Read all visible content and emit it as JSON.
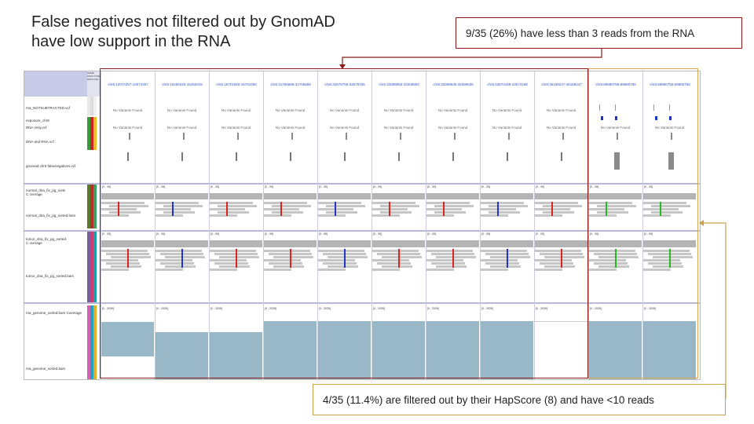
{
  "title": {
    "line1": "False negatives not filtered out by GnomAD",
    "line2": "have low support in the RNA"
  },
  "callouts": {
    "top": "9/35 (26%) have less than 3 reads from the RNA",
    "bottom": "4/35 (11.4%) are filtered out by their HapScore (8) and have <10 reads"
  },
  "igv": {
    "attribute_header": "NAME DATA TYPE DATA FILE",
    "loci": [
      "chr6:12074257-12074257",
      "chr6:16450315-16450315",
      "chr6:16701060-16701060",
      "chr6:31765689-31765689",
      "chr6:32575755-32575755",
      "chr6:33308993-33308993",
      "chr6:33399635-33399635",
      "chr6:43573189-43573189",
      "chr6:46168247-46168247",
      "chr6:69880755-69880755",
      "chr6:69880756-69880756"
    ],
    "tracks": {
      "rna_notsubtracted": "rna_NOTSUBTRACTED.vcf",
      "exposure": "exposure_chr6",
      "rna_only": "RNA Only.vcf",
      "dna_rna": "DNA and RNA.vcf",
      "gnomad": "gnomad.chr6 falsenegatives.vcf",
      "normal_cov": "normal_dna_fix_pg_sorted.bam C overage",
      "normal_bam": "normal_dna_fix_pg_sorted.bam",
      "tumor_cov": "tumor_dna_fix_pg_sorted.bam C overage",
      "tumor_bam": "tumor_dna_fix_pg_sorted.bam",
      "rna_cov": "rna_genome_sorted.bam Coverage",
      "rna_bam": "rna_genome_sorted.bam"
    },
    "no_variants": "No Variants Found",
    "dna_scale": "[0 - 39]",
    "rna_scale": "[0 - 2039]"
  },
  "colors": {
    "highlight_red": "#8b1a1a",
    "highlight_gold": "#d9a550",
    "rna_fill": "#98b8c8"
  }
}
